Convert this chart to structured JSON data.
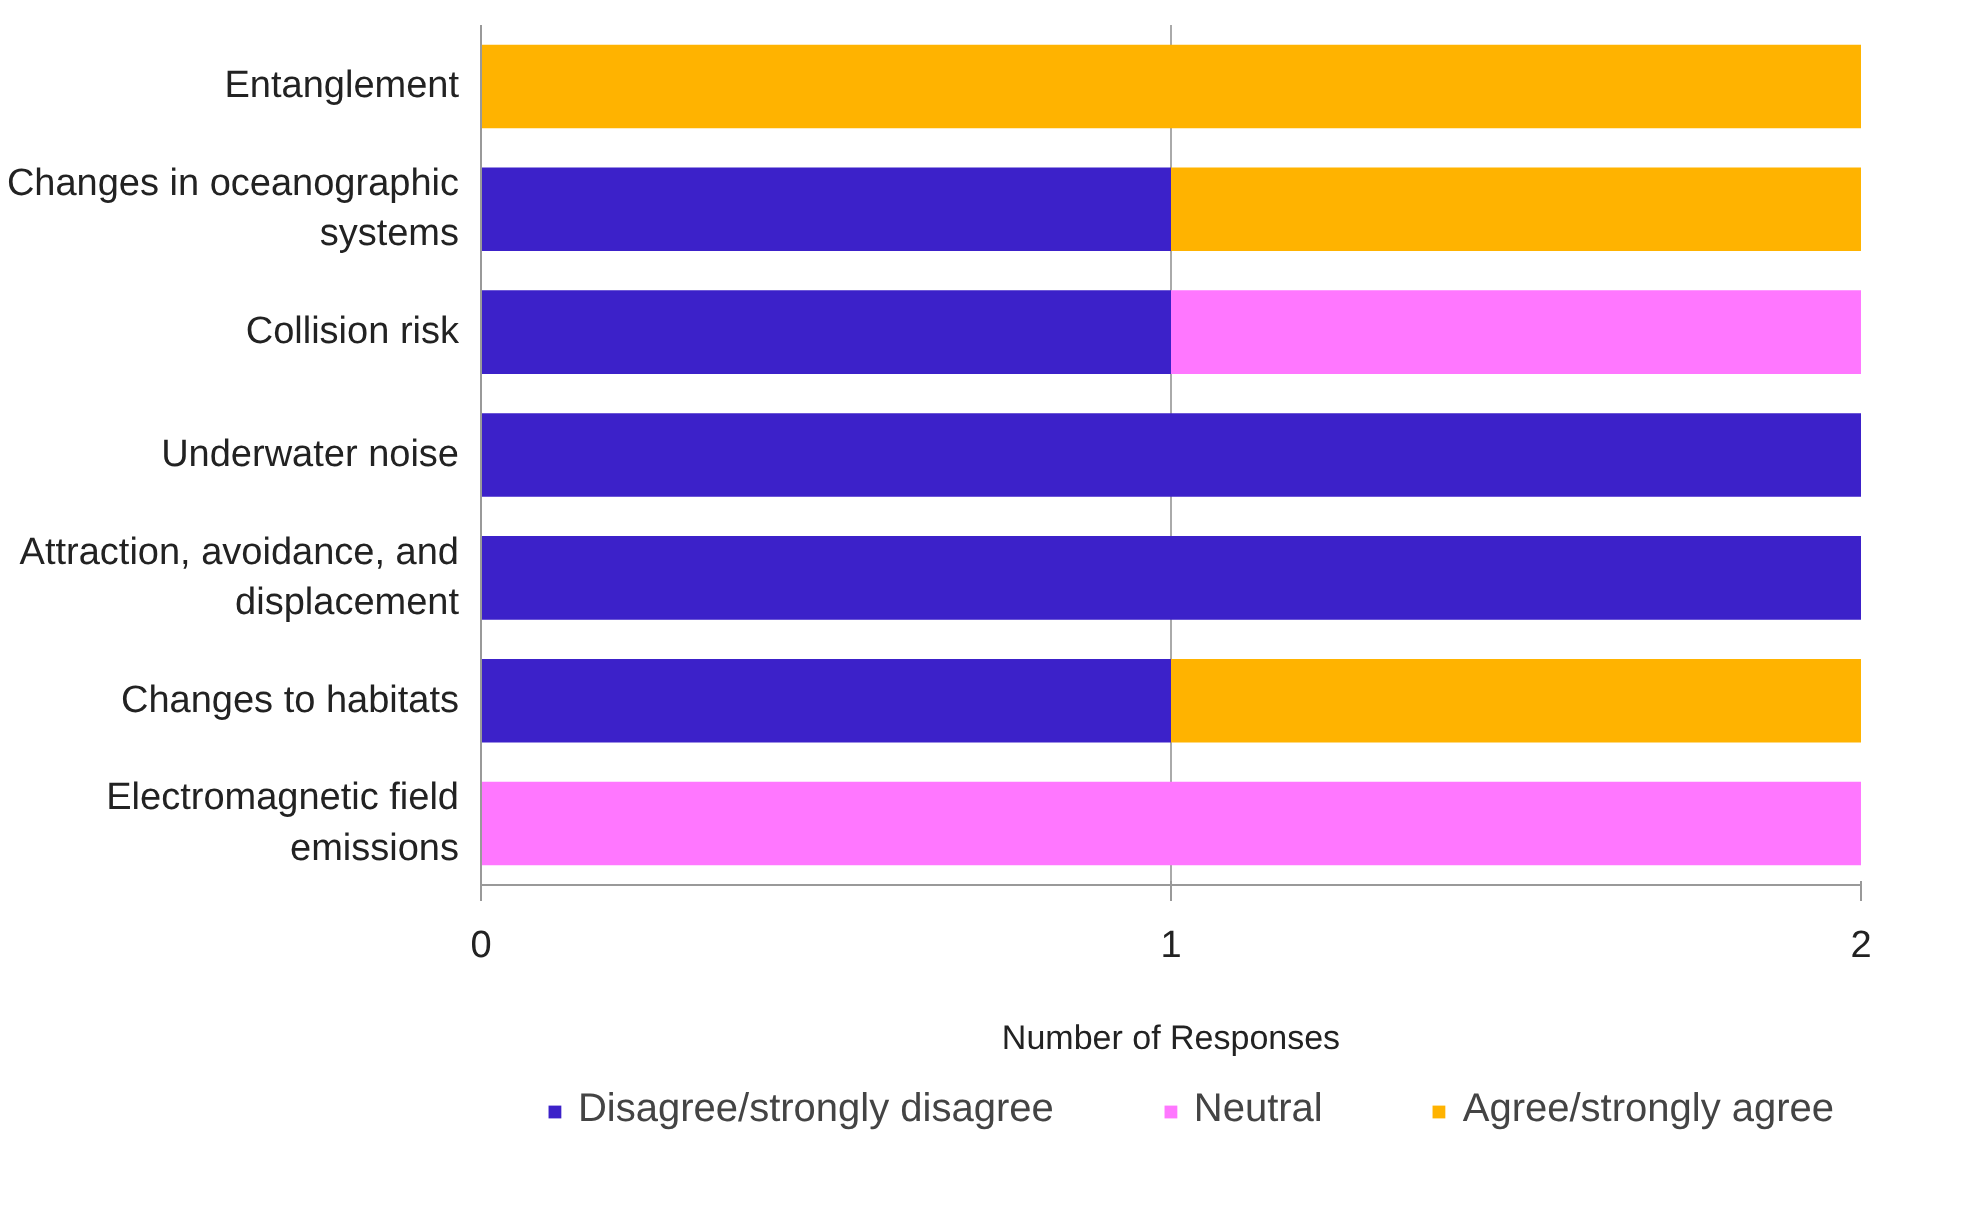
{
  "chart_data": {
    "type": "bar",
    "orientation": "horizontal",
    "stacked": true,
    "categories": [
      "Entanglement",
      "Changes in oceanographic systems",
      "Collision risk",
      "Underwater noise",
      "Attraction, avoidance, and displacement",
      "Changes to habitats",
      "Electromagnetic field emissions"
    ],
    "series": [
      {
        "name": "Disagree/strongly disagree",
        "color": "#3c21c9",
        "values": [
          0,
          1,
          1,
          2,
          2,
          1,
          0
        ]
      },
      {
        "name": "Neutral",
        "color": "#ff77ff",
        "values": [
          0,
          0,
          1,
          0,
          0,
          0,
          2
        ]
      },
      {
        "name": "Agree/strongly agree",
        "color": "#ffb300",
        "values": [
          2,
          1,
          0,
          0,
          0,
          1,
          0
        ]
      }
    ],
    "xlabel": "Number of Responses",
    "xlim": [
      0,
      2
    ],
    "xticks": [
      0,
      1,
      2
    ],
    "grid": "x",
    "legend": "bottom"
  }
}
